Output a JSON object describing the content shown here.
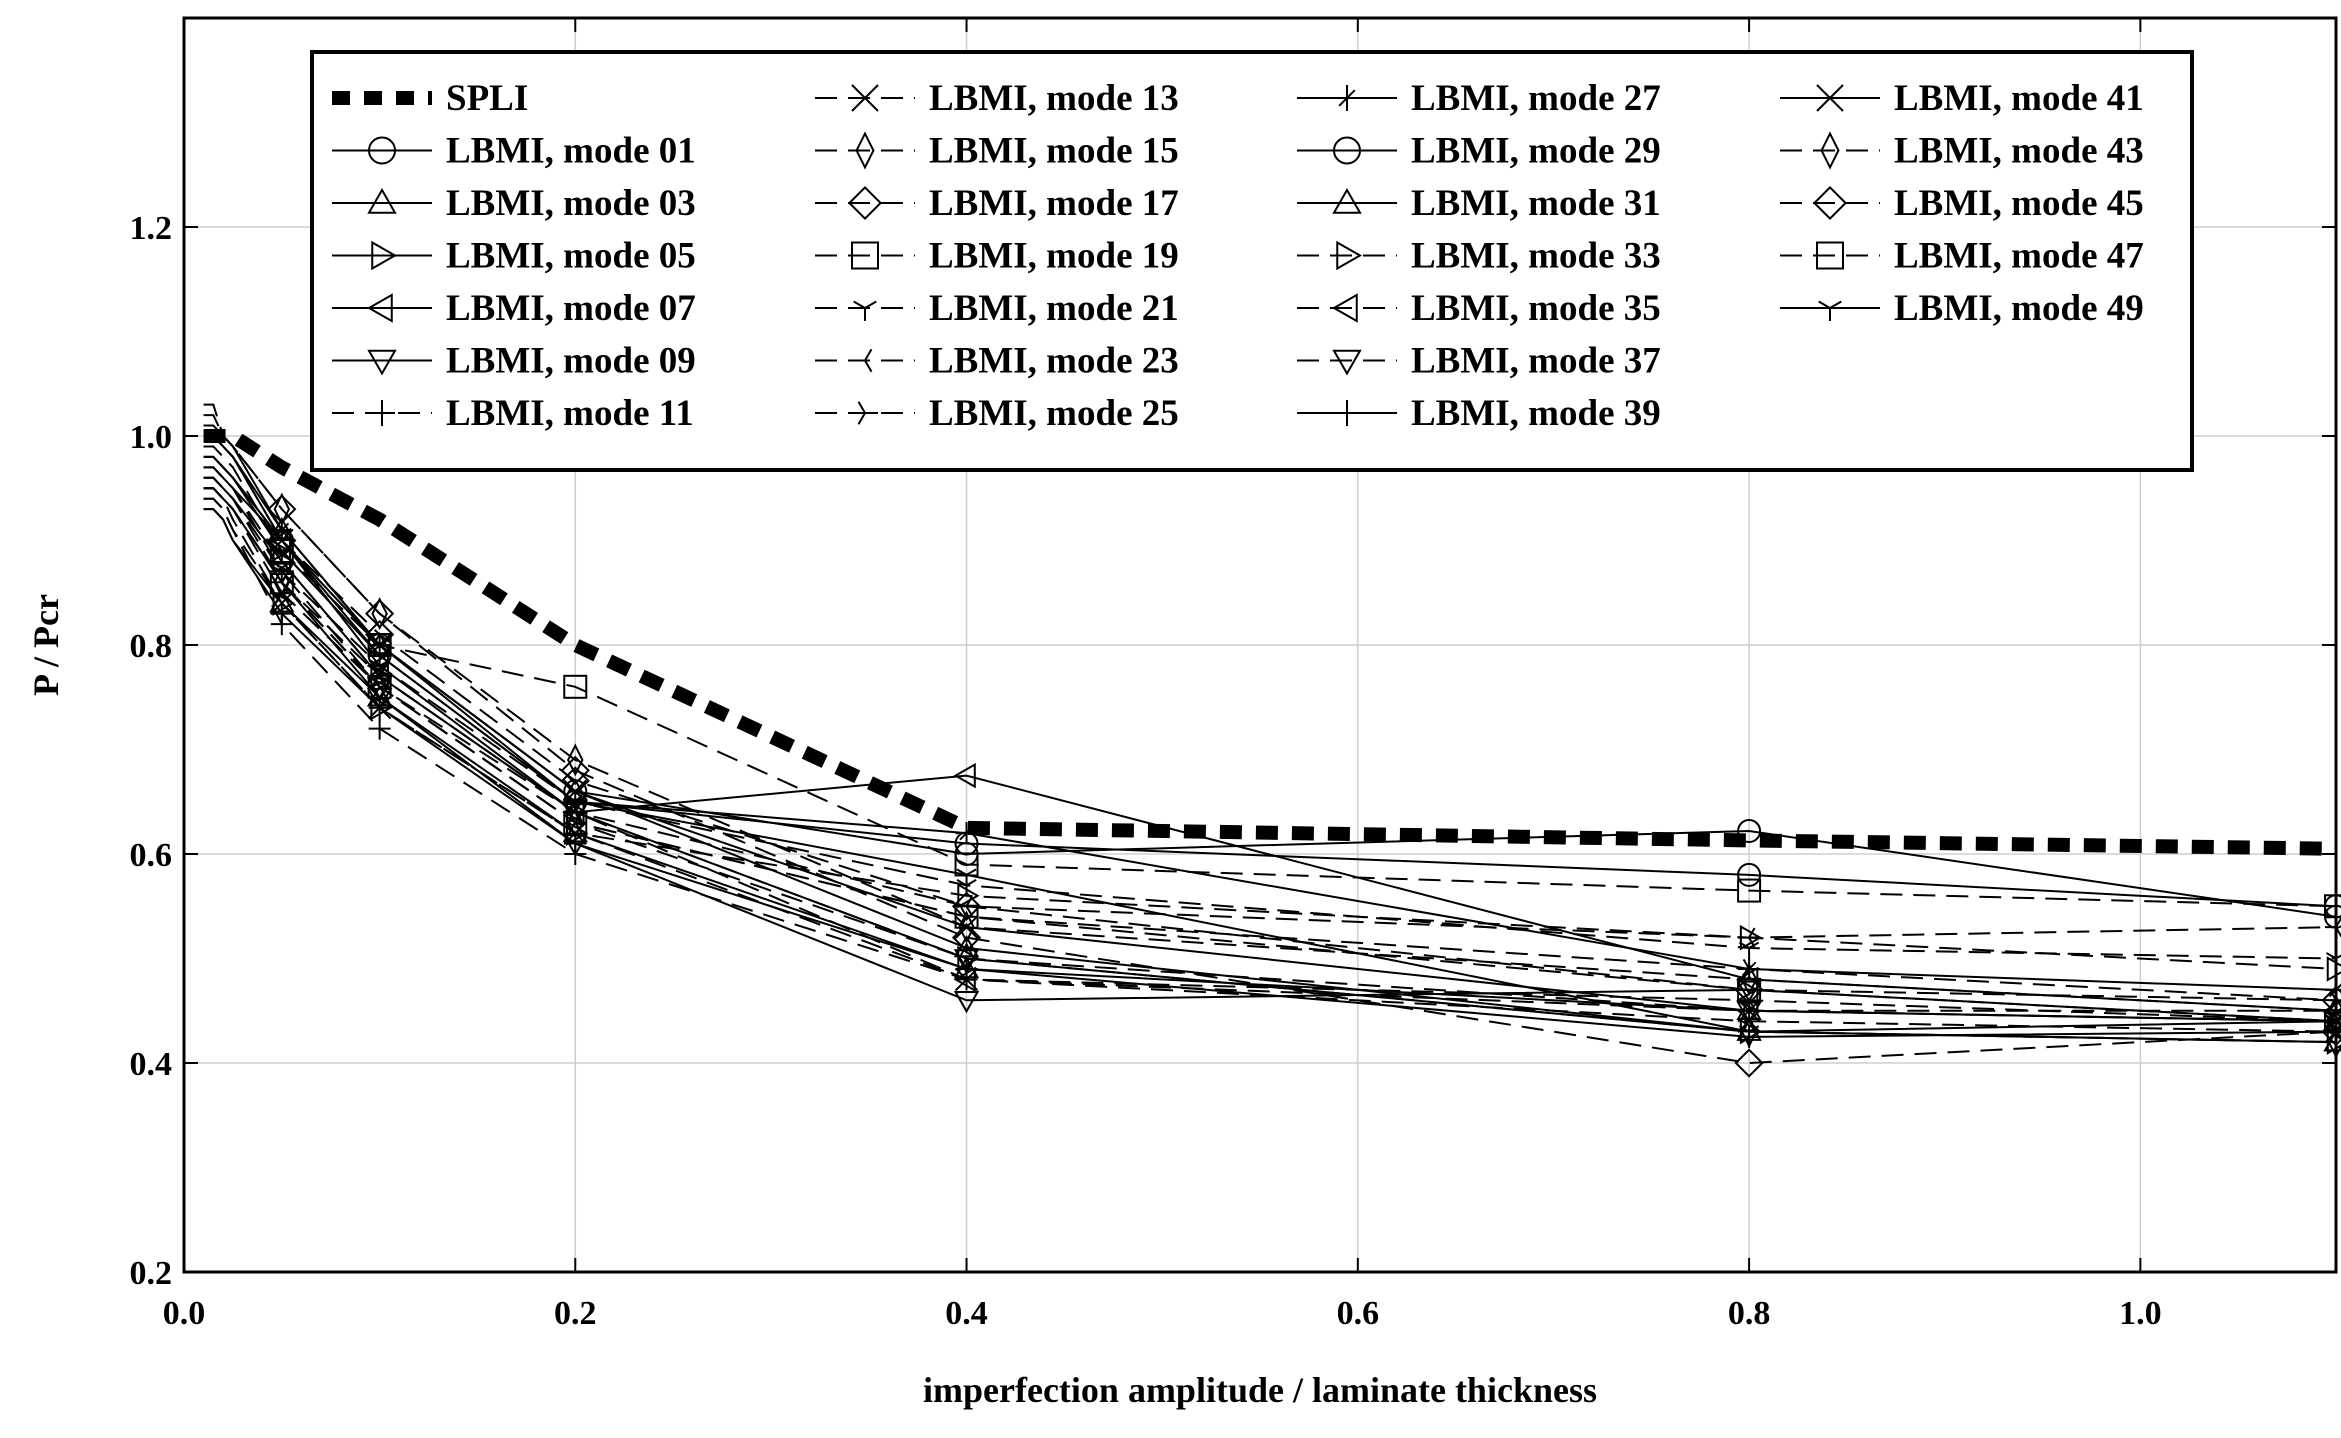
{
  "chart_data": {
    "type": "line",
    "title": "",
    "xlabel": "imperfection amplitude / laminate thickness",
    "ylabel": "P / Pcr",
    "xlim": [
      0,
      1.1
    ],
    "ylim": [
      0.2,
      1.4
    ],
    "x_ticks": [
      "0.0",
      "0.2",
      "0.4",
      "0.6",
      "0.8",
      "1.0"
    ],
    "y_ticks": [
      "0.2",
      "0.4",
      "0.6",
      "0.8",
      "1.0",
      "1.2"
    ],
    "grid": true,
    "legend_position": "top",
    "x": [
      0.01,
      0.015,
      0.02,
      0.025,
      0.05,
      0.1,
      0.2,
      0.4,
      0.8,
      1.1
    ],
    "series": [
      {
        "name": "SPLI",
        "values": [
          1.0,
          1.0,
          1.0,
          1.0,
          0.97,
          0.92,
          0.8,
          0.625,
          0.613,
          0.605
        ]
      },
      {
        "name": "LBMI, mode 01",
        "values": [
          0.97,
          0.97,
          0.96,
          0.95,
          0.9,
          0.8,
          0.66,
          0.6,
          0.622,
          0.54
        ]
      },
      {
        "name": "LBMI, mode 03",
        "values": [
          0.93,
          0.93,
          0.92,
          0.9,
          0.84,
          0.75,
          0.62,
          0.49,
          0.45,
          0.44
        ]
      },
      {
        "name": "LBMI, mode 05",
        "values": [
          0.96,
          0.96,
          0.95,
          0.94,
          0.88,
          0.77,
          0.64,
          0.5,
          0.43,
          0.42
        ]
      },
      {
        "name": "LBMI, mode 07",
        "values": [
          0.98,
          0.98,
          0.97,
          0.96,
          0.9,
          0.78,
          0.64,
          0.675,
          0.48,
          0.45
        ]
      },
      {
        "name": "LBMI, mode 09",
        "values": [
          0.95,
          0.95,
          0.94,
          0.93,
          0.86,
          0.75,
          0.61,
          0.46,
          0.47,
          0.44
        ]
      },
      {
        "name": "LBMI, mode 11",
        "values": [
          0.94,
          0.94,
          0.93,
          0.91,
          0.82,
          0.72,
          0.6,
          0.48,
          0.45,
          0.45
        ]
      },
      {
        "name": "LBMI, mode 13",
        "values": [
          0.95,
          0.95,
          0.94,
          0.92,
          0.84,
          0.74,
          0.62,
          0.48,
          0.44,
          0.43
        ]
      },
      {
        "name": "LBMI, mode 15",
        "values": [
          1.02,
          1.02,
          1.0,
          0.99,
          0.93,
          0.83,
          0.69,
          0.53,
          0.48,
          0.45
        ]
      },
      {
        "name": "LBMI, mode 17",
        "values": [
          1.0,
          1.0,
          0.99,
          0.98,
          0.9,
          0.81,
          0.67,
          0.55,
          0.47,
          0.46
        ]
      },
      {
        "name": "LBMI, mode 19",
        "values": [
          0.99,
          0.99,
          0.98,
          0.97,
          0.89,
          0.8,
          0.76,
          0.59,
          0.565,
          0.55
        ]
      },
      {
        "name": "LBMI, mode 21",
        "values": [
          0.97,
          0.97,
          0.96,
          0.95,
          0.87,
          0.78,
          0.65,
          0.57,
          0.51,
          0.5
        ]
      },
      {
        "name": "LBMI, mode 23",
        "values": [
          0.96,
          0.96,
          0.95,
          0.94,
          0.86,
          0.77,
          0.64,
          0.55,
          0.52,
          0.53
        ]
      },
      {
        "name": "LBMI, mode 25",
        "values": [
          0.95,
          0.95,
          0.94,
          0.93,
          0.85,
          0.76,
          0.63,
          0.54,
          0.49,
          0.46
        ]
      },
      {
        "name": "LBMI, mode 27",
        "values": [
          1.0,
          1.0,
          0.99,
          0.98,
          0.91,
          0.8,
          0.65,
          0.62,
          0.49,
          0.47
        ]
      },
      {
        "name": "LBMI, mode 29",
        "values": [
          0.98,
          0.98,
          0.97,
          0.96,
          0.9,
          0.79,
          0.65,
          0.61,
          0.58,
          0.55
        ]
      },
      {
        "name": "LBMI, mode 31",
        "values": [
          1.01,
          1.01,
          1.0,
          0.99,
          0.91,
          0.8,
          0.66,
          0.51,
          0.43,
          0.42
        ]
      },
      {
        "name": "LBMI, mode 33",
        "values": [
          0.94,
          0.94,
          0.93,
          0.91,
          0.84,
          0.74,
          0.62,
          0.56,
          0.52,
          0.49
        ]
      },
      {
        "name": "LBMI, mode 35",
        "values": [
          0.97,
          0.97,
          0.96,
          0.95,
          0.88,
          0.77,
          0.64,
          0.48,
          0.46,
          0.44
        ]
      },
      {
        "name": "LBMI, mode 37",
        "values": [
          0.96,
          0.96,
          0.95,
          0.94,
          0.87,
          0.76,
          0.64,
          0.5,
          0.45,
          0.44
        ]
      },
      {
        "name": "LBMI, mode 39",
        "values": [
          0.93,
          0.93,
          0.92,
          0.9,
          0.83,
          0.74,
          0.61,
          0.49,
          0.425,
          0.43
        ]
      },
      {
        "name": "LBMI, mode 41",
        "values": [
          1.0,
          1.0,
          0.99,
          0.98,
          0.9,
          0.8,
          0.66,
          0.53,
          0.45,
          0.44
        ]
      },
      {
        "name": "LBMI, mode 43",
        "values": [
          0.95,
          0.95,
          0.94,
          0.93,
          0.86,
          0.76,
          0.63,
          0.5,
          0.43,
          0.42
        ]
      },
      {
        "name": "LBMI, mode 45",
        "values": [
          1.03,
          1.03,
          1.0,
          0.99,
          0.93,
          0.83,
          0.68,
          0.52,
          0.4,
          0.43
        ]
      },
      {
        "name": "LBMI, mode 47",
        "values": [
          0.95,
          0.95,
          0.94,
          0.93,
          0.86,
          0.76,
          0.63,
          0.54,
          0.47,
          0.44
        ]
      },
      {
        "name": "LBMI, mode 49",
        "values": [
          0.98,
          0.98,
          0.97,
          0.96,
          0.89,
          0.79,
          0.65,
          0.58,
          0.43,
          0.44
        ]
      }
    ]
  }
}
